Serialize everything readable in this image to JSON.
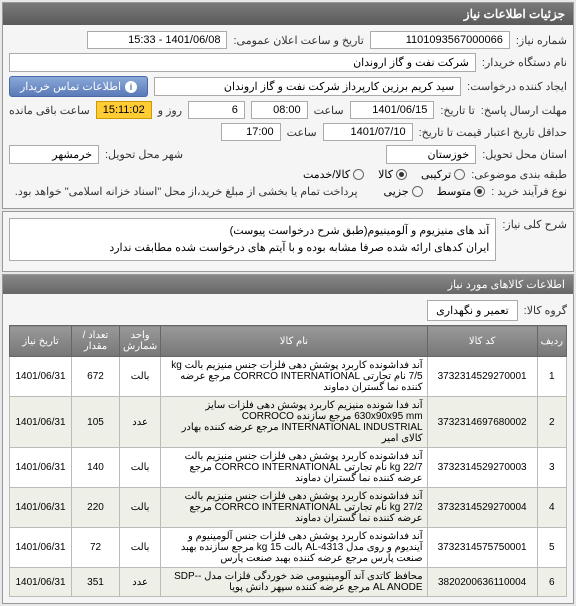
{
  "panel1": {
    "title": "جزئیات اطلاعات نیاز",
    "need_no_label": "شماره نیاز:",
    "need_no": "1101093567000066",
    "announce_label": "تاریخ و ساعت اعلان عمومی:",
    "announce": "1401/06/08 - 15:33",
    "buyer_label": "نام دستگاه خریدار:",
    "buyer": "شرکت نفت و گاز اروندان",
    "requester_label": "ایجاد کننده درخواست:",
    "requester": "سید کریم برزین کارپرداز شرکت نفت و گاز اروندان",
    "contact_btn": "اطلاعات تماس خریدار",
    "deadline_label": "مهلت ارسال پاسخ:",
    "deadline_to": "تا تاریخ:",
    "deadline_date": "1401/06/15",
    "deadline_time_label": "ساعت",
    "deadline_time": "08:00",
    "days_count": "6",
    "days_unit": "روز و",
    "countdown": "15:11:02",
    "countdown_suffix": "ساعت باقی مانده",
    "validity_label": "حداقل تاریخ اعتبار قیمت تا تاریخ:",
    "validity_date": "1401/07/10",
    "validity_time_label": "ساعت",
    "validity_time": "17:00",
    "province_label": "استان محل تحویل:",
    "province": "خوزستان",
    "city_label": "شهر محل تحویل:",
    "city": "خرمشهر",
    "subject_class_label": "طبقه بندی موضوعی:",
    "subject_options": [
      "ترکیبی",
      "کالا",
      "کالا/خدمت"
    ],
    "subject_selected": 1,
    "process_label": "نوع فرآیند خرید :",
    "process_options": [
      "متوسط",
      "جزیی"
    ],
    "process_selected": 0,
    "pay_note": "پرداخت تمام یا بخشی از مبلغ خرید،از محل \"اسناد خزانه اسلامی\" خواهد بود."
  },
  "panel2": {
    "desc_label": "شرح کلی نیاز:",
    "desc_line1": "آند های منیزیوم و آلومینیوم(طبق شرح درخواست پیوست)",
    "desc_line2": "ایران کدهای ارائه شده صرفا مشابه بوده و با آیتم های درخواست شده مطابقت ندارد"
  },
  "panel3": {
    "title": "اطلاعات کالاهای مورد نیاز",
    "group_label": "گروه کالا:",
    "group_value": "تعمیر و نگهداری",
    "columns": [
      "ردیف",
      "کد کالا",
      "نام کالا",
      "واحد شمارش",
      "تعداد / مقدار",
      "تاریخ نیاز"
    ],
    "rows": [
      {
        "idx": "1",
        "code": "3732314529270001",
        "name": "آند فداشونده کاربرد پوشش دهی فلزات جنس منیزیم بالت kg 7/5 نام تجارتی CORRCO INTERNATIONAL مرجع عرضه کننده نما گستران دماوند",
        "unit": "بالت",
        "qty": "672",
        "date": "1401/06/31"
      },
      {
        "idx": "2",
        "code": "3732314697680002",
        "name": "آند فدا شونده منیزیم کاربرد پوشش دهی فلزات سایز 630x90x95 mm مرجع سازنده CORROCO INTERNATIONAL INDUSTRIAL مرجع عرضه کننده بهادر کالای امیر",
        "unit": "عدد",
        "qty": "105",
        "date": "1401/06/31"
      },
      {
        "idx": "3",
        "code": "3732314529270003",
        "name": "آند فداشونده کاربرد پوشش دهی فلزات جنس منیزیم بالت 22/7 kg نام تجارتی CORRCO INTERNATIONAL مرجع عرضه کننده نما گستران دماوند",
        "unit": "بالت",
        "qty": "140",
        "date": "1401/06/31"
      },
      {
        "idx": "4",
        "code": "3732314529270004",
        "name": "آند فداشونده کاربرد پوشش دهی فلزات جنس منیزیم بالت 27/2 kg نام تجارتی CORRCO INTERNATIONAL مرجع عرضه کننده نما گستران دماوند",
        "unit": "بالت",
        "qty": "220",
        "date": "1401/06/31"
      },
      {
        "idx": "5",
        "code": "3732314575750001",
        "name": "آند فداشونده کاربرد پوشش دهی فلزات جنس آلومینیوم و آیندیوم و روی مدل AL-4313 بالت kg 15 مرجع سازنده بهبد صنعت پارس مرجع عرضه کننده بهبد صنعت پارس",
        "unit": "بالت",
        "qty": "72",
        "date": "1401/06/31"
      },
      {
        "idx": "6",
        "code": "3820200636110004",
        "name": "محافظ کاتدی آند آلومینیومی ضد خوردگی فلزات مدل -SDP-AL ANODE مرجع عرضه کننده سپهر دانش پویا",
        "unit": "عدد",
        "qty": "351",
        "date": "1401/06/31"
      }
    ]
  }
}
